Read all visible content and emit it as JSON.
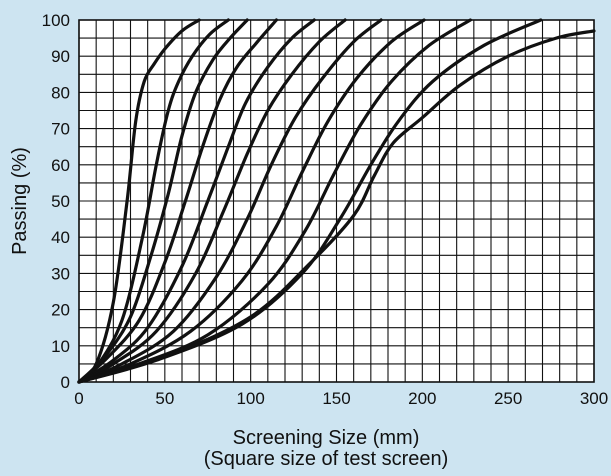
{
  "chart_data": {
    "type": "line",
    "title": "",
    "xlabel": "Screening Size (mm)",
    "xlabel_sub": "(Square size of test screen)",
    "ylabel": "Passing (%)",
    "xlim": [
      0,
      300
    ],
    "ylim": [
      0,
      100
    ],
    "grid": true,
    "legend": "none",
    "x_ticks": [
      "0",
      "50",
      "100",
      "150",
      "200",
      "250",
      "300"
    ],
    "y_ticks": [
      "0",
      "10",
      "20",
      "30",
      "40",
      "50",
      "60",
      "70",
      "80",
      "90",
      "100"
    ],
    "colors": {
      "background": "#cde4f1",
      "plot_area": "#ffffff",
      "grid": "#111111",
      "curve": "#111111"
    },
    "series": [
      {
        "points": [
          [
            0,
            0
          ],
          [
            10,
            5
          ],
          [
            20,
            22
          ],
          [
            28,
            50
          ],
          [
            33,
            72
          ],
          [
            38,
            83
          ],
          [
            44,
            88
          ],
          [
            50,
            92
          ],
          [
            60,
            97
          ],
          [
            70,
            100
          ]
        ]
      },
      {
        "points": [
          [
            0,
            0
          ],
          [
            10,
            4
          ],
          [
            25,
            17
          ],
          [
            37,
            40
          ],
          [
            45,
            60
          ],
          [
            52,
            75
          ],
          [
            58,
            83
          ],
          [
            66,
            90
          ],
          [
            76,
            96
          ],
          [
            87,
            100
          ]
        ]
      },
      {
        "points": [
          [
            0,
            0
          ],
          [
            15,
            7
          ],
          [
            30,
            18
          ],
          [
            42,
            35
          ],
          [
            52,
            52
          ],
          [
            60,
            68
          ],
          [
            68,
            80
          ],
          [
            78,
            89
          ],
          [
            88,
            95
          ],
          [
            98,
            100
          ]
        ]
      },
      {
        "points": [
          [
            0,
            0
          ],
          [
            15,
            6
          ],
          [
            35,
            17
          ],
          [
            50,
            33
          ],
          [
            62,
            50
          ],
          [
            72,
            65
          ],
          [
            82,
            78
          ],
          [
            92,
            87
          ],
          [
            104,
            94
          ],
          [
            115,
            100
          ]
        ]
      },
      {
        "points": [
          [
            0,
            0
          ],
          [
            20,
            6
          ],
          [
            40,
            15
          ],
          [
            60,
            32
          ],
          [
            75,
            50
          ],
          [
            87,
            65
          ],
          [
            97,
            77
          ],
          [
            110,
            87
          ],
          [
            124,
            95
          ],
          [
            137,
            100
          ]
        ]
      },
      {
        "points": [
          [
            0,
            0
          ],
          [
            20,
            5
          ],
          [
            45,
            14
          ],
          [
            68,
            30
          ],
          [
            84,
            47
          ],
          [
            98,
            63
          ],
          [
            110,
            75
          ],
          [
            124,
            85
          ],
          [
            140,
            94
          ],
          [
            155,
            100
          ]
        ]
      },
      {
        "points": [
          [
            0,
            0
          ],
          [
            25,
            5
          ],
          [
            55,
            14
          ],
          [
            80,
            29
          ],
          [
            98,
            45
          ],
          [
            112,
            60
          ],
          [
            126,
            73
          ],
          [
            142,
            84
          ],
          [
            160,
            94
          ],
          [
            176,
            100
          ]
        ]
      },
      {
        "points": [
          [
            0,
            0
          ],
          [
            30,
            5
          ],
          [
            65,
            14
          ],
          [
            95,
            28
          ],
          [
            115,
            43
          ],
          [
            130,
            58
          ],
          [
            145,
            72
          ],
          [
            162,
            84
          ],
          [
            182,
            94
          ],
          [
            201,
            100
          ]
        ]
      },
      {
        "points": [
          [
            0,
            0
          ],
          [
            35,
            5
          ],
          [
            75,
            13
          ],
          [
            110,
            27
          ],
          [
            132,
            42
          ],
          [
            148,
            57
          ],
          [
            164,
            71
          ],
          [
            182,
            83
          ],
          [
            204,
            93
          ],
          [
            228,
            100
          ]
        ]
      },
      {
        "points": [
          [
            0,
            0
          ],
          [
            45,
            6
          ],
          [
            95,
            16
          ],
          [
            130,
            30
          ],
          [
            152,
            45
          ],
          [
            170,
            60
          ],
          [
            186,
            72
          ],
          [
            206,
            83
          ],
          [
            236,
            93
          ],
          [
            269,
            100
          ]
        ]
      },
      {
        "points": [
          [
            0,
            0
          ],
          [
            50,
            7
          ],
          [
            100,
            18
          ],
          [
            135,
            33
          ],
          [
            160,
            46
          ],
          [
            172,
            57
          ],
          [
            183,
            66
          ],
          [
            200,
            73
          ],
          [
            222,
            82
          ],
          [
            250,
            90
          ],
          [
            278,
            95
          ],
          [
            300,
            97
          ]
        ]
      }
    ]
  }
}
